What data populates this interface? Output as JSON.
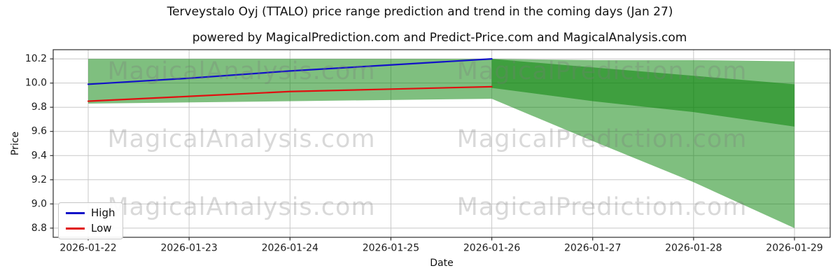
{
  "chart_data": {
    "type": "area",
    "title": "Terveystalo Oyj (TTALO) price range prediction and trend in the coming days (Jan 27)",
    "subtitle": "powered by MagicalPrediction.com and Predict-Price.com and MagicalAnalysis.com",
    "xlabel": "Date",
    "ylabel": "Price",
    "x_tick_labels": [
      "2026-01-22",
      "2026-01-23",
      "2026-01-24",
      "2026-01-25",
      "2026-01-26",
      "2026-01-27",
      "2026-01-28",
      "2026-01-29"
    ],
    "y_ticks": [
      {
        "label": "8.8",
        "value": 8.8
      },
      {
        "label": "9.0",
        "value": 9.0
      },
      {
        "label": "9.2",
        "value": 9.2
      },
      {
        "label": "9.4",
        "value": 9.4
      },
      {
        "label": "9.6",
        "value": 9.6
      },
      {
        "label": "9.8",
        "value": 9.8
      },
      {
        "label": "10.0",
        "value": 10.0
      },
      {
        "label": "10.2",
        "value": 10.2
      }
    ],
    "xlim_days": [
      -0.347,
      7.354
    ],
    "ylim": [
      8.724,
      10.276
    ],
    "grid": true,
    "grid_color": "#c8c8c8",
    "series": [
      {
        "name": "High",
        "color": "#1212c8",
        "x": [
          0,
          1,
          2,
          3,
          4
        ],
        "values": [
          9.99,
          10.04,
          10.1,
          10.15,
          10.2
        ]
      },
      {
        "name": "Low",
        "color": "#e01010",
        "x": [
          0,
          1,
          2,
          3,
          4
        ],
        "values": [
          9.85,
          9.89,
          9.93,
          9.95,
          9.97
        ]
      }
    ],
    "bands": [
      {
        "name": "historical-range",
        "fill": "rgba(0,128,0,0.5)",
        "x": [
          0,
          4
        ],
        "top": [
          10.2,
          10.2
        ],
        "bottom": [
          9.83,
          9.87
        ]
      },
      {
        "name": "forecast-range-outer",
        "fill": "rgba(0,128,0,0.5)",
        "x": [
          4,
          5,
          6,
          7
        ],
        "top": [
          10.2,
          10.19,
          10.19,
          10.18
        ],
        "bottom": [
          9.87,
          9.52,
          9.18,
          8.8
        ]
      },
      {
        "name": "forecast-range-inner",
        "fill": "rgba(0,128,0,0.5)",
        "x": [
          4,
          5,
          6,
          7
        ],
        "top": [
          10.2,
          10.13,
          10.06,
          9.99
        ],
        "bottom": [
          9.96,
          9.85,
          9.76,
          9.64
        ]
      }
    ],
    "legend": {
      "position": "lower-left",
      "entries": [
        {
          "label": "High",
          "color": "#1212c8"
        },
        {
          "label": "Low",
          "color": "#e01010"
        }
      ]
    },
    "watermarks": {
      "left_text": "MagicalAnalysis.com",
      "right_text": "MagicalPrediction.com"
    }
  }
}
